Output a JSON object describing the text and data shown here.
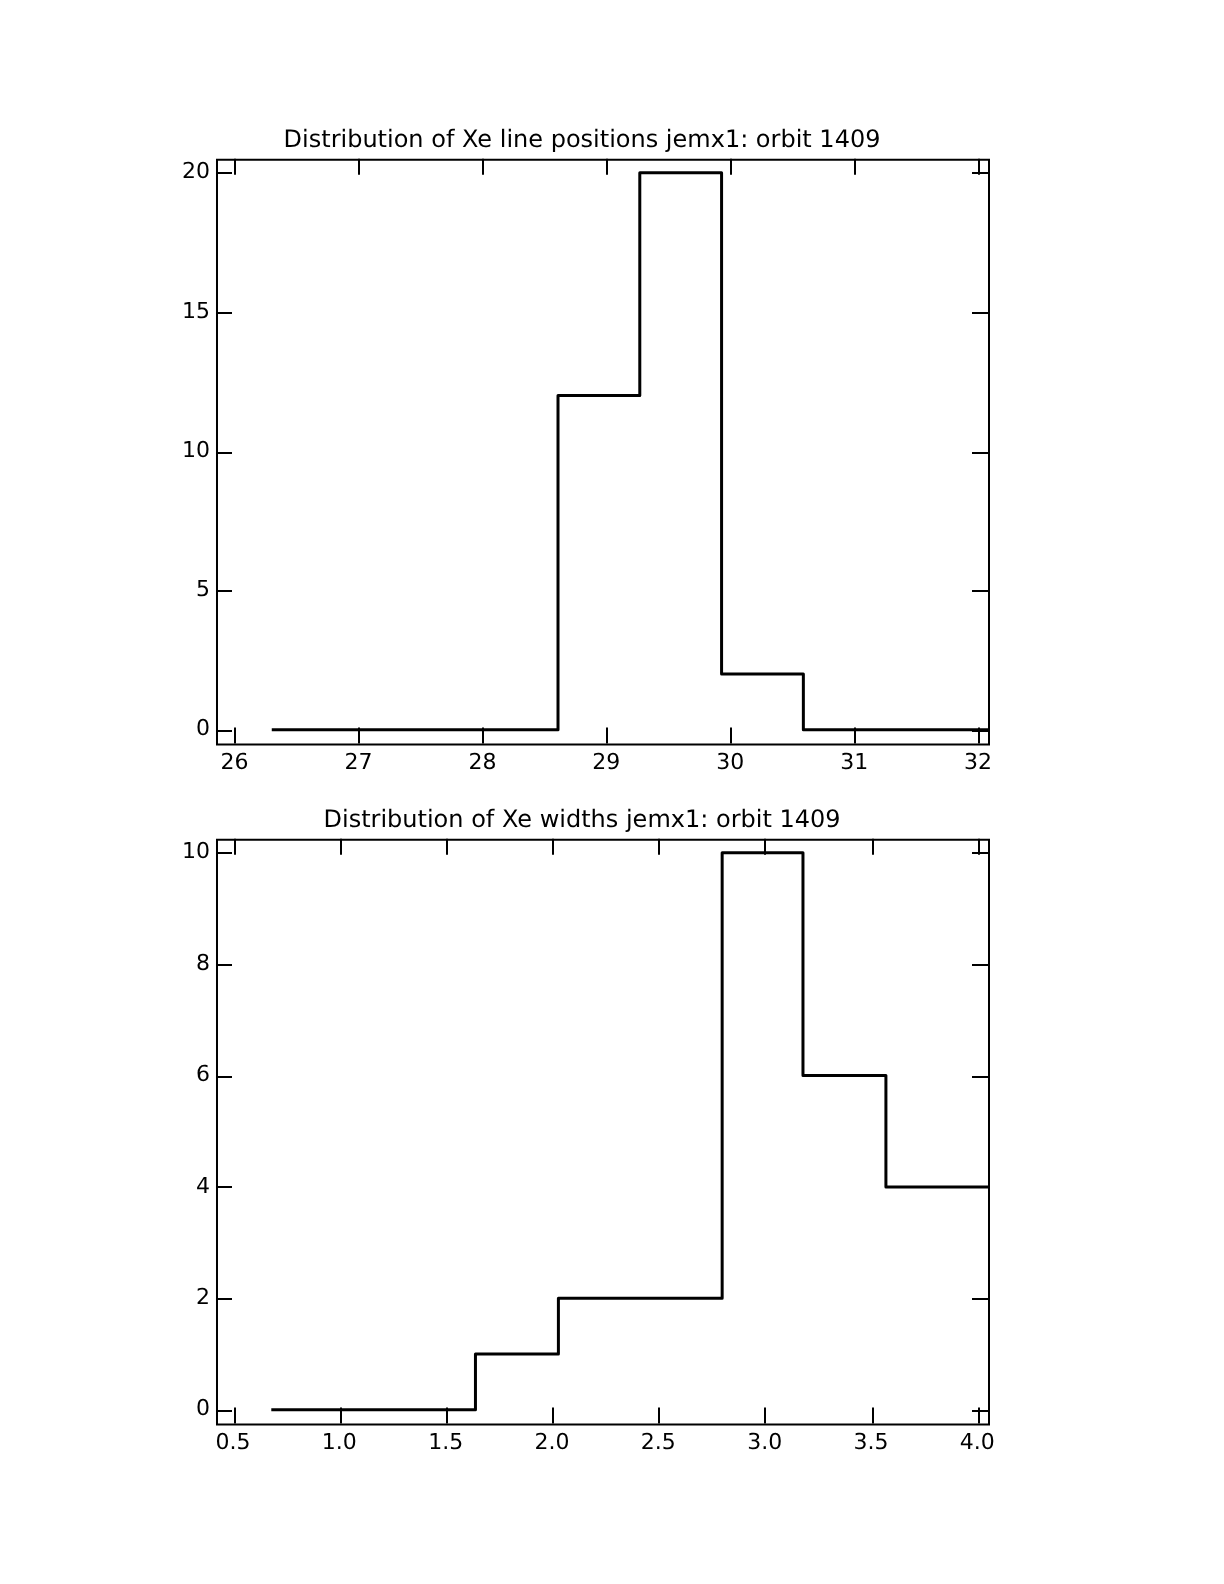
{
  "chart_data": [
    {
      "type": "histogram",
      "title": "Distribution of Xe line positions jemx1: orbit 1409",
      "bins": [
        26.3,
        26.63,
        27.29,
        27.95,
        28.61,
        29.27,
        29.93,
        30.59,
        31.25,
        31.91,
        32.08
      ],
      "values": [
        0,
        0,
        0,
        0,
        12,
        20,
        2,
        0,
        0,
        0
      ],
      "color": "#000000",
      "xlim": [
        25.85,
        32.08
      ],
      "xticks": [
        26,
        27,
        28,
        29,
        30,
        31,
        32
      ],
      "ylim": [
        -0.5,
        20.5
      ],
      "yticks": [
        0,
        5,
        10,
        15,
        20
      ],
      "grid": false,
      "legend": false
    },
    {
      "type": "histogram",
      "title": "Distribution of Xe widths jemx1: orbit 1409",
      "bins": [
        0.68,
        0.87,
        1.26,
        1.64,
        2.03,
        2.41,
        2.8,
        3.18,
        3.57,
        3.95,
        4.05
      ],
      "values": [
        0,
        0,
        0,
        1,
        2,
        2,
        10,
        6,
        4,
        4
      ],
      "color": "#000000",
      "xlim": [
        0.42,
        4.05
      ],
      "xticks": [
        {
          "value": 0.5,
          "label": "0.5"
        },
        {
          "value": 1,
          "label": "1.0"
        },
        {
          "value": 1.5,
          "label": "1.5"
        },
        {
          "value": 2,
          "label": "2.0"
        },
        {
          "value": 2.5,
          "label": "2.5"
        },
        {
          "value": 3,
          "label": "3.0"
        },
        {
          "value": 3.5,
          "label": "3.5"
        },
        {
          "value": 4,
          "label": "4.0"
        }
      ],
      "ylim": [
        -0.25,
        10.25
      ],
      "yticks": [
        0,
        2,
        4,
        6,
        8,
        10
      ],
      "grid": false,
      "legend": false
    }
  ]
}
